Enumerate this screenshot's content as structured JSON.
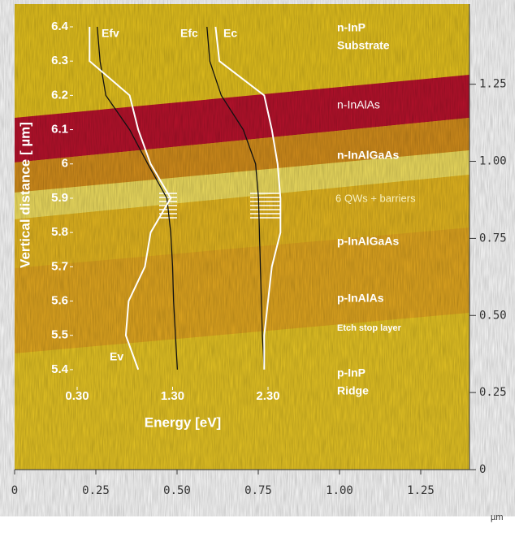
{
  "chart_data": [
    {
      "type": "image",
      "x_unit": "µm",
      "xlim": [
        0,
        1.4
      ],
      "xticks": [
        0,
        {
          "value": 0.25,
          "label": "0.25"
        },
        {
          "value": 0.5,
          "label": "0.50"
        },
        {
          "value": 0.75,
          "label": "0.75"
        },
        {
          "value": 1,
          "label": "1.00"
        },
        {
          "value": 1.25,
          "label": "1.25"
        }
      ],
      "ylim": [
        0,
        1.51
      ],
      "yticks": [
        0,
        {
          "value": 0.25,
          "label": "0.25"
        },
        {
          "value": 0.5,
          "label": "0.50"
        },
        {
          "value": 0.75,
          "label": "0.75"
        },
        {
          "value": 1,
          "label": "1.00"
        },
        {
          "value": 1.25,
          "label": "1.25"
        }
      ],
      "layers": [
        "n-InP",
        "Substrate",
        "n-InAlAs",
        "n-InAlGaAs",
        "6 QWs +  barriers",
        "p-InAlGaAs",
        "p-InAlAs",
        "Etch stop layer",
        "p-InP",
        "Ridge"
      ]
    },
    {
      "type": "line",
      "x_label": "Energy [eV]",
      "y_label": "Vertical distance [  µm]",
      "xlim": [
        0.2,
        2.5
      ],
      "xticks": [
        {
          "value": 0.3,
          "label": "0.30"
        },
        {
          "value": 1.3,
          "label": "1.30"
        },
        {
          "value": 2.3,
          "label": "2.30"
        }
      ],
      "ylim": [
        5.35,
        6.45
      ],
      "yticks": [
        6.4,
        6.3,
        6.2,
        6.1,
        6.0,
        5.9,
        5.8,
        5.7,
        5.6,
        5.5,
        5.4
      ],
      "y": [
        6.4,
        6.3,
        6.2,
        6.1,
        6.0,
        5.9,
        5.8,
        5.7,
        5.6,
        5.5,
        5.4
      ],
      "series": [
        {
          "name": "Efv",
          "color": "#111111",
          "values": [
            0.51,
            0.54,
            0.6,
            0.85,
            1.04,
            1.24,
            1.28,
            1.3,
            1.31,
            1.33,
            1.35
          ]
        },
        {
          "name": "Ev",
          "color": "#ffffff",
          "values": [
            0.43,
            0.43,
            0.85,
            0.94,
            1.07,
            1.28,
            1.07,
            1.01,
            0.84,
            0.81,
            0.94
          ]
        },
        {
          "name": "Efc",
          "color": "#111111",
          "values": [
            1.66,
            1.69,
            1.81,
            2.04,
            2.17,
            2.2,
            2.21,
            2.22,
            2.23,
            2.24,
            2.26
          ]
        },
        {
          "name": "Ec",
          "color": "#ffffff",
          "values": [
            1.75,
            1.79,
            2.26,
            2.34,
            2.4,
            2.43,
            2.43,
            2.34,
            2.3,
            2.26,
            2.26
          ]
        }
      ]
    }
  ]
}
